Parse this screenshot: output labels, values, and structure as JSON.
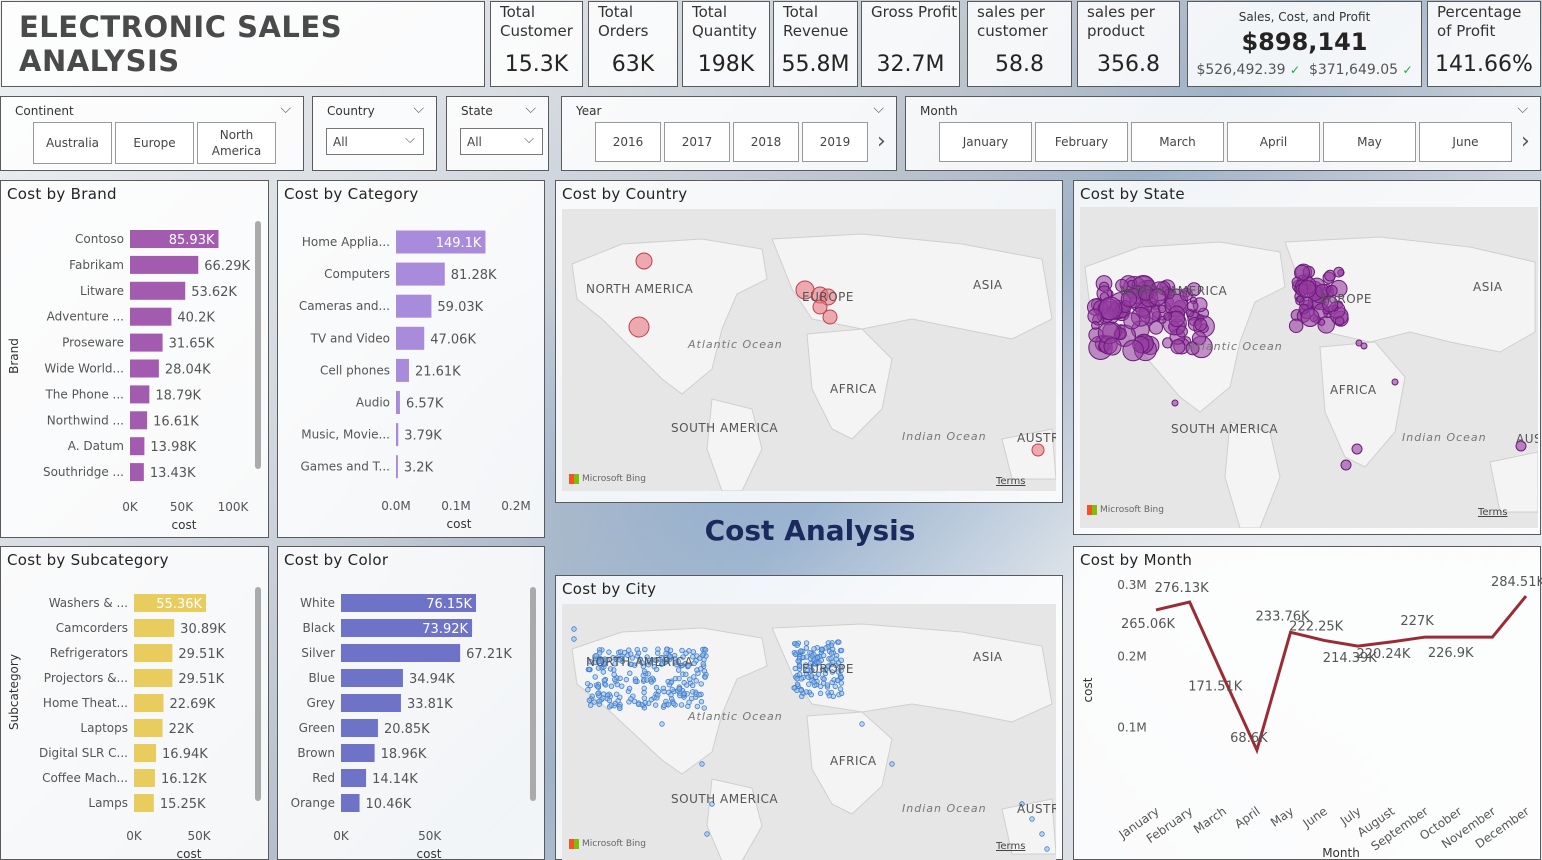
{
  "header": {
    "title": "ELECTRONIC SALES ANALYSIS"
  },
  "kpis": [
    {
      "label": "Total Customer",
      "value": "15.3K"
    },
    {
      "label": "Total Orders",
      "value": "63K"
    },
    {
      "label": "Total Quantity",
      "value": "198K"
    },
    {
      "label": "Total Revenue",
      "value": "55.8M"
    },
    {
      "label": "Gross Profit",
      "value": "32.7M"
    },
    {
      "label": "sales per customer",
      "value": "58.8"
    },
    {
      "label": "sales per product",
      "value": "356.8"
    }
  ],
  "kpi_combo": {
    "label": "Sales, Cost, and Profit",
    "value": "$898,141",
    "sub1": "$526,492.39",
    "sub2": "$371,649.05",
    "up": "✓"
  },
  "kpi_pct": {
    "label": "Percentage of Profit",
    "value": "141.66%"
  },
  "slicers": {
    "continent": {
      "label": "Continent",
      "options": [
        "Australia",
        "Europe",
        "North America"
      ]
    },
    "country": {
      "label": "Country",
      "value": "All"
    },
    "state": {
      "label": "State",
      "value": "All"
    },
    "year": {
      "label": "Year",
      "options": [
        "2016",
        "2017",
        "2018",
        "2019"
      ]
    },
    "month": {
      "label": "Month",
      "options": [
        "January",
        "February",
        "March",
        "April",
        "May",
        "June"
      ]
    }
  },
  "titles": {
    "brand": "Cost by Brand",
    "category": "Cost by Category",
    "country": "Cost by Country",
    "state": "Cost by State",
    "subcategory": "Cost by Subcategory",
    "color": "Cost by Color",
    "city": "Cost by City",
    "month": "Cost by Month"
  },
  "page_title": "Cost Analysis",
  "map_labels": {
    "na": "NORTH AMERICA",
    "eu": "EUROPE",
    "asia": "ASIA",
    "africa": "AFRICA",
    "sa": "SOUTH AMERICA",
    "aus": "AUSTR",
    "aus2": "AUS",
    "atlantic": "Atlantic Ocean",
    "indian": "Indian Ocean",
    "bing": "Microsoft Bing",
    "terms": "Terms"
  },
  "chart_data": [
    {
      "id": "brand",
      "type": "bar",
      "orientation": "horizontal",
      "ylabel": "Brand",
      "xlabel": "cost",
      "color": "#a35bb0",
      "xlim": [
        0,
        100000
      ],
      "ticks": [
        "0K",
        "50K",
        "100K"
      ],
      "categories": [
        "Contoso",
        "Fabrikam",
        "Litware",
        "Adventure ...",
        "Proseware",
        "Wide World...",
        "The Phone ...",
        "Northwind ...",
        "A. Datum",
        "Southridge ..."
      ],
      "values": [
        85930,
        66290,
        53620,
        40200,
        31650,
        28040,
        18790,
        16610,
        13980,
        13430
      ],
      "labels": [
        "85.93K",
        "66.29K",
        "53.62K",
        "40.2K",
        "31.65K",
        "28.04K",
        "18.79K",
        "16.61K",
        "13.98K",
        "13.43K"
      ]
    },
    {
      "id": "category",
      "type": "bar",
      "orientation": "horizontal",
      "xlabel": "cost",
      "color": "#a98bdb",
      "xlim": [
        0,
        200000
      ],
      "ticks": [
        "0.0M",
        "0.1M",
        "0.2M"
      ],
      "categories": [
        "Home Applia...",
        "Computers",
        "Cameras and...",
        "TV and Video",
        "Cell phones",
        "Audio",
        "Music, Movie...",
        "Games and T..."
      ],
      "values": [
        149100,
        81280,
        59030,
        47060,
        21610,
        6570,
        3790,
        3200
      ],
      "labels": [
        "149.1K",
        "81.28K",
        "59.03K",
        "47.06K",
        "21.61K",
        "6.57K",
        "3.79K",
        "3.2K"
      ]
    },
    {
      "id": "subcategory",
      "type": "bar",
      "orientation": "horizontal",
      "ylabel": "Subcategory",
      "xlabel": "cost",
      "color": "#e8cd5e",
      "xlim": [
        0,
        55360
      ],
      "ticks": [
        "0K",
        "50K"
      ],
      "categories": [
        "Washers & ...",
        "Camcorders",
        "Refrigerators",
        "Projectors &...",
        "Home Theat...",
        "Laptops",
        "Digital SLR C...",
        "Coffee Mach...",
        "Lamps"
      ],
      "values": [
        55360,
        30890,
        29510,
        29510,
        22690,
        22000,
        16940,
        16120,
        15250
      ],
      "labels": [
        "55.36K",
        "30.89K",
        "29.51K",
        "29.51K",
        "22.69K",
        "22K",
        "16.94K",
        "16.12K",
        "15.25K"
      ]
    },
    {
      "id": "color",
      "type": "bar",
      "orientation": "horizontal",
      "xlabel": "cost",
      "color": "#6f73c8",
      "xlim": [
        0,
        76150
      ],
      "ticks": [
        "0K",
        "50K"
      ],
      "categories": [
        "White",
        "Black",
        "Silver",
        "Blue",
        "Grey",
        "Green",
        "Brown",
        "Red",
        "Orange"
      ],
      "values": [
        76150,
        73920,
        67210,
        34940,
        33810,
        20850,
        18960,
        14140,
        10460
      ],
      "labels": [
        "76.15K",
        "73.92K",
        "67.21K",
        "34.94K",
        "33.81K",
        "20.85K",
        "18.96K",
        "14.14K",
        "10.46K"
      ]
    },
    {
      "id": "month",
      "type": "line",
      "xlabel": "Month",
      "ylabel": "cost",
      "color": "#9b2c36",
      "ylim": [
        0,
        300000
      ],
      "ticks": [
        "0.1M",
        "0.2M",
        "0.3M"
      ],
      "categories": [
        "January",
        "February",
        "March",
        "April",
        "May",
        "June",
        "July",
        "August",
        "September",
        "October",
        "November",
        "December"
      ],
      "values": [
        265060,
        276130,
        171510,
        68600,
        233760,
        222250,
        214390,
        220240,
        227000,
        226900,
        226900,
        284510
      ],
      "labels": [
        "265.06K",
        "276.13K",
        "171.51K",
        "68.6K",
        "233.76K",
        "222.25K",
        "214.39K",
        "220.24K",
        "227K",
        "226.9K",
        "",
        "284.51K"
      ]
    }
  ]
}
